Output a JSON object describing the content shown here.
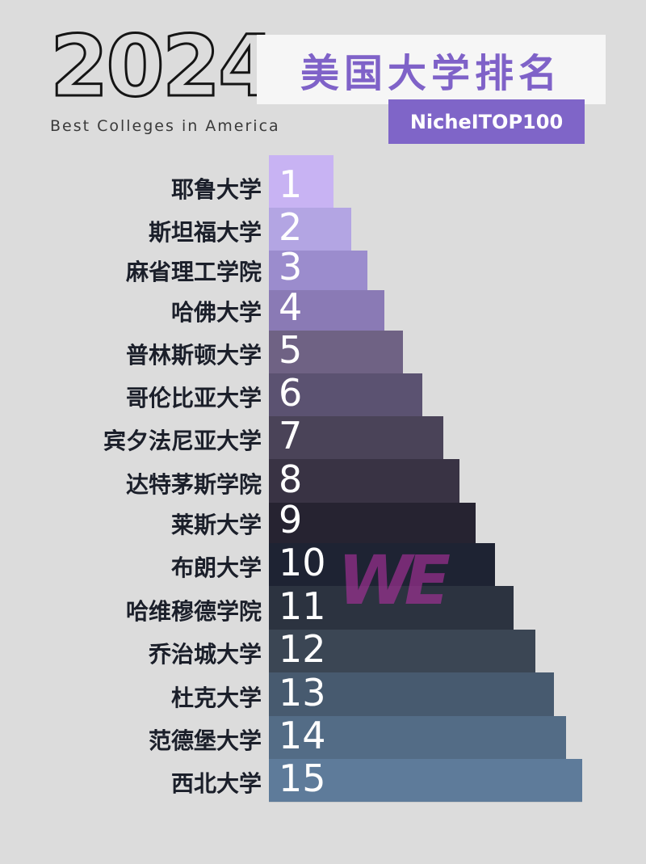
{
  "header": {
    "year": "2024",
    "subtitle": "Best Colleges in America",
    "title": "美国大学排名",
    "tag": "NicheITOP100"
  },
  "watermark": "WE",
  "rankings": [
    {
      "rank": "1",
      "name": "耶鲁大学",
      "color": "#c8b3f3"
    },
    {
      "rank": "2",
      "name": "斯坦福大学",
      "color": "#b3a5e3"
    },
    {
      "rank": "3",
      "name": "麻省理工学院",
      "color": "#9b8ccd"
    },
    {
      "rank": "4",
      "name": "哈佛大学",
      "color": "#8a7ab5"
    },
    {
      "rank": "5",
      "name": "普林斯顿大学",
      "color": "#6f6284"
    },
    {
      "rank": "6",
      "name": "哥伦比亚大学",
      "color": "#5b5271"
    },
    {
      "rank": "7",
      "name": "宾夕法尼亚大学",
      "color": "#4a4358"
    },
    {
      "rank": "8",
      "name": "达特茅斯学院",
      "color": "#393344"
    },
    {
      "rank": "9",
      "name": "莱斯大学",
      "color": "#262331"
    },
    {
      "rank": "10",
      "name": "布朗大学",
      "color": "#1e2333"
    },
    {
      "rank": "11",
      "name": "哈维穆德学院",
      "color": "#2c3340"
    },
    {
      "rank": "12",
      "name": "乔治城大学",
      "color": "#3b4654"
    },
    {
      "rank": "13",
      "name": "杜克大学",
      "color": "#475a6f"
    },
    {
      "rank": "14",
      "name": "范德堡大学",
      "color": "#536c86"
    },
    {
      "rank": "15",
      "name": "西北大学",
      "color": "#5e7b9a"
    }
  ]
}
